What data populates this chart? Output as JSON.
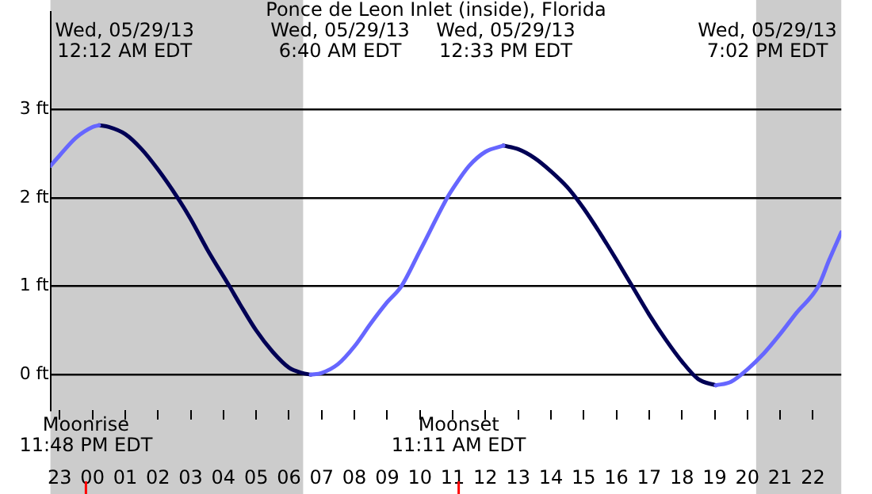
{
  "chart_data": {
    "type": "line",
    "title": "Ponce de Leon Inlet (inside), Florida",
    "xlim": [
      "--05-28T22:43",
      "--05-29T22:52"
    ],
    "xticks": [
      {
        "value": "--05-28T23:00",
        "label": "23"
      },
      {
        "value": "--05-29T00:00",
        "label": "00"
      },
      {
        "value": "--05-29T01:00",
        "label": "01"
      },
      {
        "value": "--05-29T02:00",
        "label": "02"
      },
      {
        "value": "--05-29T03:00",
        "label": "03"
      },
      {
        "value": "--05-29T04:00",
        "label": "04"
      },
      {
        "value": "--05-29T05:00",
        "label": "05"
      },
      {
        "value": "--05-29T06:00",
        "label": "06"
      },
      {
        "value": "--05-29T07:00",
        "label": "07"
      },
      {
        "value": "--05-29T08:00",
        "label": "08"
      },
      {
        "value": "--05-29T09:00",
        "label": "09"
      },
      {
        "value": "--05-29T10:00",
        "label": "10"
      },
      {
        "value": "--05-29T11:00",
        "label": "11"
      },
      {
        "value": "--05-29T12:00",
        "label": "12"
      },
      {
        "value": "--05-29T13:00",
        "label": "13"
      },
      {
        "value": "--05-29T14:00",
        "label": "14"
      },
      {
        "value": "--05-29T15:00",
        "label": "15"
      },
      {
        "value": "--05-29T16:00",
        "label": "16"
      },
      {
        "value": "--05-29T17:00",
        "label": "17"
      },
      {
        "value": "--05-29T18:00",
        "label": "18"
      },
      {
        "value": "--05-29T19:00",
        "label": "19"
      },
      {
        "value": "--05-29T20:00",
        "label": "20"
      },
      {
        "value": "--05-29T21:00",
        "label": "21"
      },
      {
        "value": "--05-29T22:00",
        "label": "22"
      }
    ],
    "ylim": [
      -0.4,
      4.1
    ],
    "yticks": [
      {
        "value": 0,
        "label": "0 ft"
      },
      {
        "value": 1,
        "label": "1 ft"
      },
      {
        "value": 2,
        "label": "2 ft"
      },
      {
        "value": 3,
        "label": "3 ft"
      }
    ],
    "grid": "y",
    "legend": false,
    "marker": "none",
    "line_style": "solid",
    "series": [
      {
        "color": "#6666ff",
        "x": [
          "--05-28T22:43",
          "--05-28T23:00",
          "--05-28T23:30",
          "--05-29T00:00",
          "--05-29T00:12",
          null,
          "--05-29T06:40",
          "--05-29T07:00",
          "--05-29T07:30",
          "--05-29T08:00",
          "--05-29T08:30",
          "--05-29T09:00",
          "--05-29T09:26",
          "--05-29T10:00",
          "--05-29T10:50",
          "--05-29T11:00",
          "--05-29T11:30",
          "--05-29T12:00",
          "--05-29T12:33",
          null,
          "--05-29T19:02",
          "--05-29T19:30",
          "--05-29T20:00",
          "--05-29T20:30",
          "--05-29T21:00",
          "--05-29T21:30",
          "--05-29T22:10",
          "--05-29T22:30",
          "--05-29T22:52"
        ],
        "values": [
          2.36,
          2.48,
          2.68,
          2.8,
          2.82,
          null,
          0,
          0.02,
          0.12,
          0.32,
          0.58,
          0.82,
          1.0,
          1.4,
          2.0,
          2.1,
          2.36,
          2.52,
          2.59,
          null,
          -0.12,
          -0.08,
          0.06,
          0.24,
          0.46,
          0.7,
          1.0,
          1.3,
          1.61
        ]
      },
      {
        "color": "#000055",
        "x": [
          "--05-29T00:12",
          "--05-29T00:30",
          "--05-29T01:00",
          "--05-29T01:30",
          "--05-29T02:00",
          "--05-29T02:36",
          "--05-29T03:00",
          "--05-29T03:30",
          "--05-29T04:11",
          "--05-29T04:30",
          "--05-29T05:00",
          "--05-29T05:30",
          "--05-29T06:00",
          "--05-29T06:24",
          "--05-29T06:40",
          null,
          "--05-29T12:33",
          "--05-29T13:00",
          "--05-29T13:30",
          "--05-29T14:00",
          "--05-29T14:30",
          "--05-29T15:00",
          "--05-29T15:30",
          "--05-29T16:00",
          "--05-29T16:29",
          "--05-29T17:00",
          "--05-29T17:30",
          "--05-29T18:00",
          "--05-29T18:30",
          "--05-29T19:02"
        ],
        "values": [
          2.82,
          2.8,
          2.72,
          2.55,
          2.32,
          2.0,
          1.76,
          1.42,
          1.0,
          0.8,
          0.5,
          0.26,
          0.08,
          0.02,
          0,
          null,
          2.59,
          2.55,
          2.45,
          2.3,
          2.12,
          1.88,
          1.6,
          1.3,
          1.0,
          0.68,
          0.4,
          0.15,
          -0.05,
          -0.12
        ]
      }
    ],
    "bands": [
      {
        "axis": "x",
        "from": "--05-28T22:43",
        "to": "--05-29T06:26",
        "color": "#cccccc"
      },
      {
        "axis": "x",
        "from": "--05-29T20:16",
        "to": "--05-29T22:52",
        "color": "#cccccc"
      }
    ],
    "ref_lines": [
      {
        "axis": "x",
        "value": "--05-28T23:48",
        "label": "Moonrise\n11:48 PM EDT",
        "color": "#ff0000"
      },
      {
        "axis": "x",
        "value": "--05-29T11:11",
        "label": "Moonset\n11:11 AM EDT",
        "color": "#ff0000"
      }
    ],
    "annotations": [
      "Wed, 05/29/13\n12:12 AM EDT",
      "Wed, 05/29/13\n6:40 AM EDT",
      "Wed, 05/29/13\n12:33 PM EDT",
      "Wed, 05/29/13\n7:02 PM EDT"
    ]
  }
}
